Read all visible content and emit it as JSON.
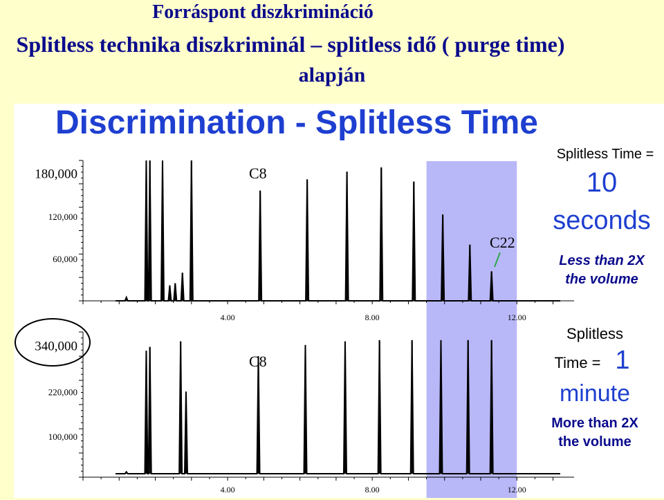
{
  "titles": {
    "line1": "Forráspont diszkrimináció",
    "line2": "Splitless technika diszkriminál – splitless idő ( purge time)",
    "line3": "alapján"
  },
  "heading": "Discrimination - Splitless Time",
  "panels": {
    "top": {
      "label_line1": "Splitless Time =",
      "label_value": "10",
      "label_unit": "seconds",
      "note_line1": "Less than 2X",
      "note_line2": "the volume",
      "c8_label": "C8",
      "c22_label": "C22"
    },
    "bottom": {
      "label_line1": "Splitless",
      "label_line2": "Time =",
      "label_value": "1",
      "label_unit": "minute",
      "note_line1": "More than 2X",
      "note_line2": "the volume",
      "c8_label": "C8"
    }
  },
  "colors": {
    "title": "#0A0A8C",
    "heading": "#1E3FD0",
    "highlight": "#B8B8F8",
    "trace": "#000000",
    "c22_arrow": "#2EA84A"
  },
  "chart_data": [
    {
      "type": "line",
      "panel": "top",
      "x_ticks": [
        "4.00",
        "8.00",
        "12.00"
      ],
      "x_tick_values": [
        4,
        8,
        12
      ],
      "y_ticks": [
        "180,000",
        "120,000",
        "60,000"
      ],
      "y_tick_values": [
        180000,
        120000,
        60000
      ],
      "xlim": [
        0,
        13.2
      ],
      "ylim": [
        0,
        200000
      ],
      "highlight_x": [
        9.5,
        12.0
      ],
      "peaks": [
        {
          "x": 1.2,
          "y": 5000
        },
        {
          "x": 1.75,
          "y": 200000
        },
        {
          "x": 1.85,
          "y": 200000
        },
        {
          "x": 2.2,
          "y": 200000
        },
        {
          "x": 2.4,
          "y": 22000
        },
        {
          "x": 2.55,
          "y": 25000
        },
        {
          "x": 2.75,
          "y": 40000
        },
        {
          "x": 3.0,
          "y": 200000
        },
        {
          "x": 4.9,
          "y": 157000
        },
        {
          "x": 6.2,
          "y": 173000
        },
        {
          "x": 7.3,
          "y": 184000
        },
        {
          "x": 8.25,
          "y": 190000
        },
        {
          "x": 9.15,
          "y": 170000
        },
        {
          "x": 9.95,
          "y": 123000
        },
        {
          "x": 10.7,
          "y": 80000
        },
        {
          "x": 11.3,
          "y": 42000
        }
      ]
    },
    {
      "type": "line",
      "panel": "bottom",
      "x_ticks": [
        "4.00",
        "8.00",
        "12.00"
      ],
      "x_tick_values": [
        4,
        8,
        12
      ],
      "y_ticks": [
        "340,000",
        "220,000",
        "100,000"
      ],
      "y_tick_values": [
        340000,
        220000,
        100000
      ],
      "xlim": [
        0,
        13.2
      ],
      "ylim": [
        0,
        380000
      ],
      "highlight_x": [
        9.5,
        12.0
      ],
      "peaks": [
        {
          "x": 1.2,
          "y": 5000
        },
        {
          "x": 1.75,
          "y": 330000
        },
        {
          "x": 1.85,
          "y": 340000
        },
        {
          "x": 2.7,
          "y": 355000
        },
        {
          "x": 2.85,
          "y": 220000
        },
        {
          "x": 4.85,
          "y": 315000
        },
        {
          "x": 6.15,
          "y": 345000
        },
        {
          "x": 7.25,
          "y": 355000
        },
        {
          "x": 8.2,
          "y": 358000
        },
        {
          "x": 9.1,
          "y": 358000
        },
        {
          "x": 9.9,
          "y": 358000
        },
        {
          "x": 10.65,
          "y": 358000
        },
        {
          "x": 11.3,
          "y": 358000
        }
      ]
    }
  ]
}
